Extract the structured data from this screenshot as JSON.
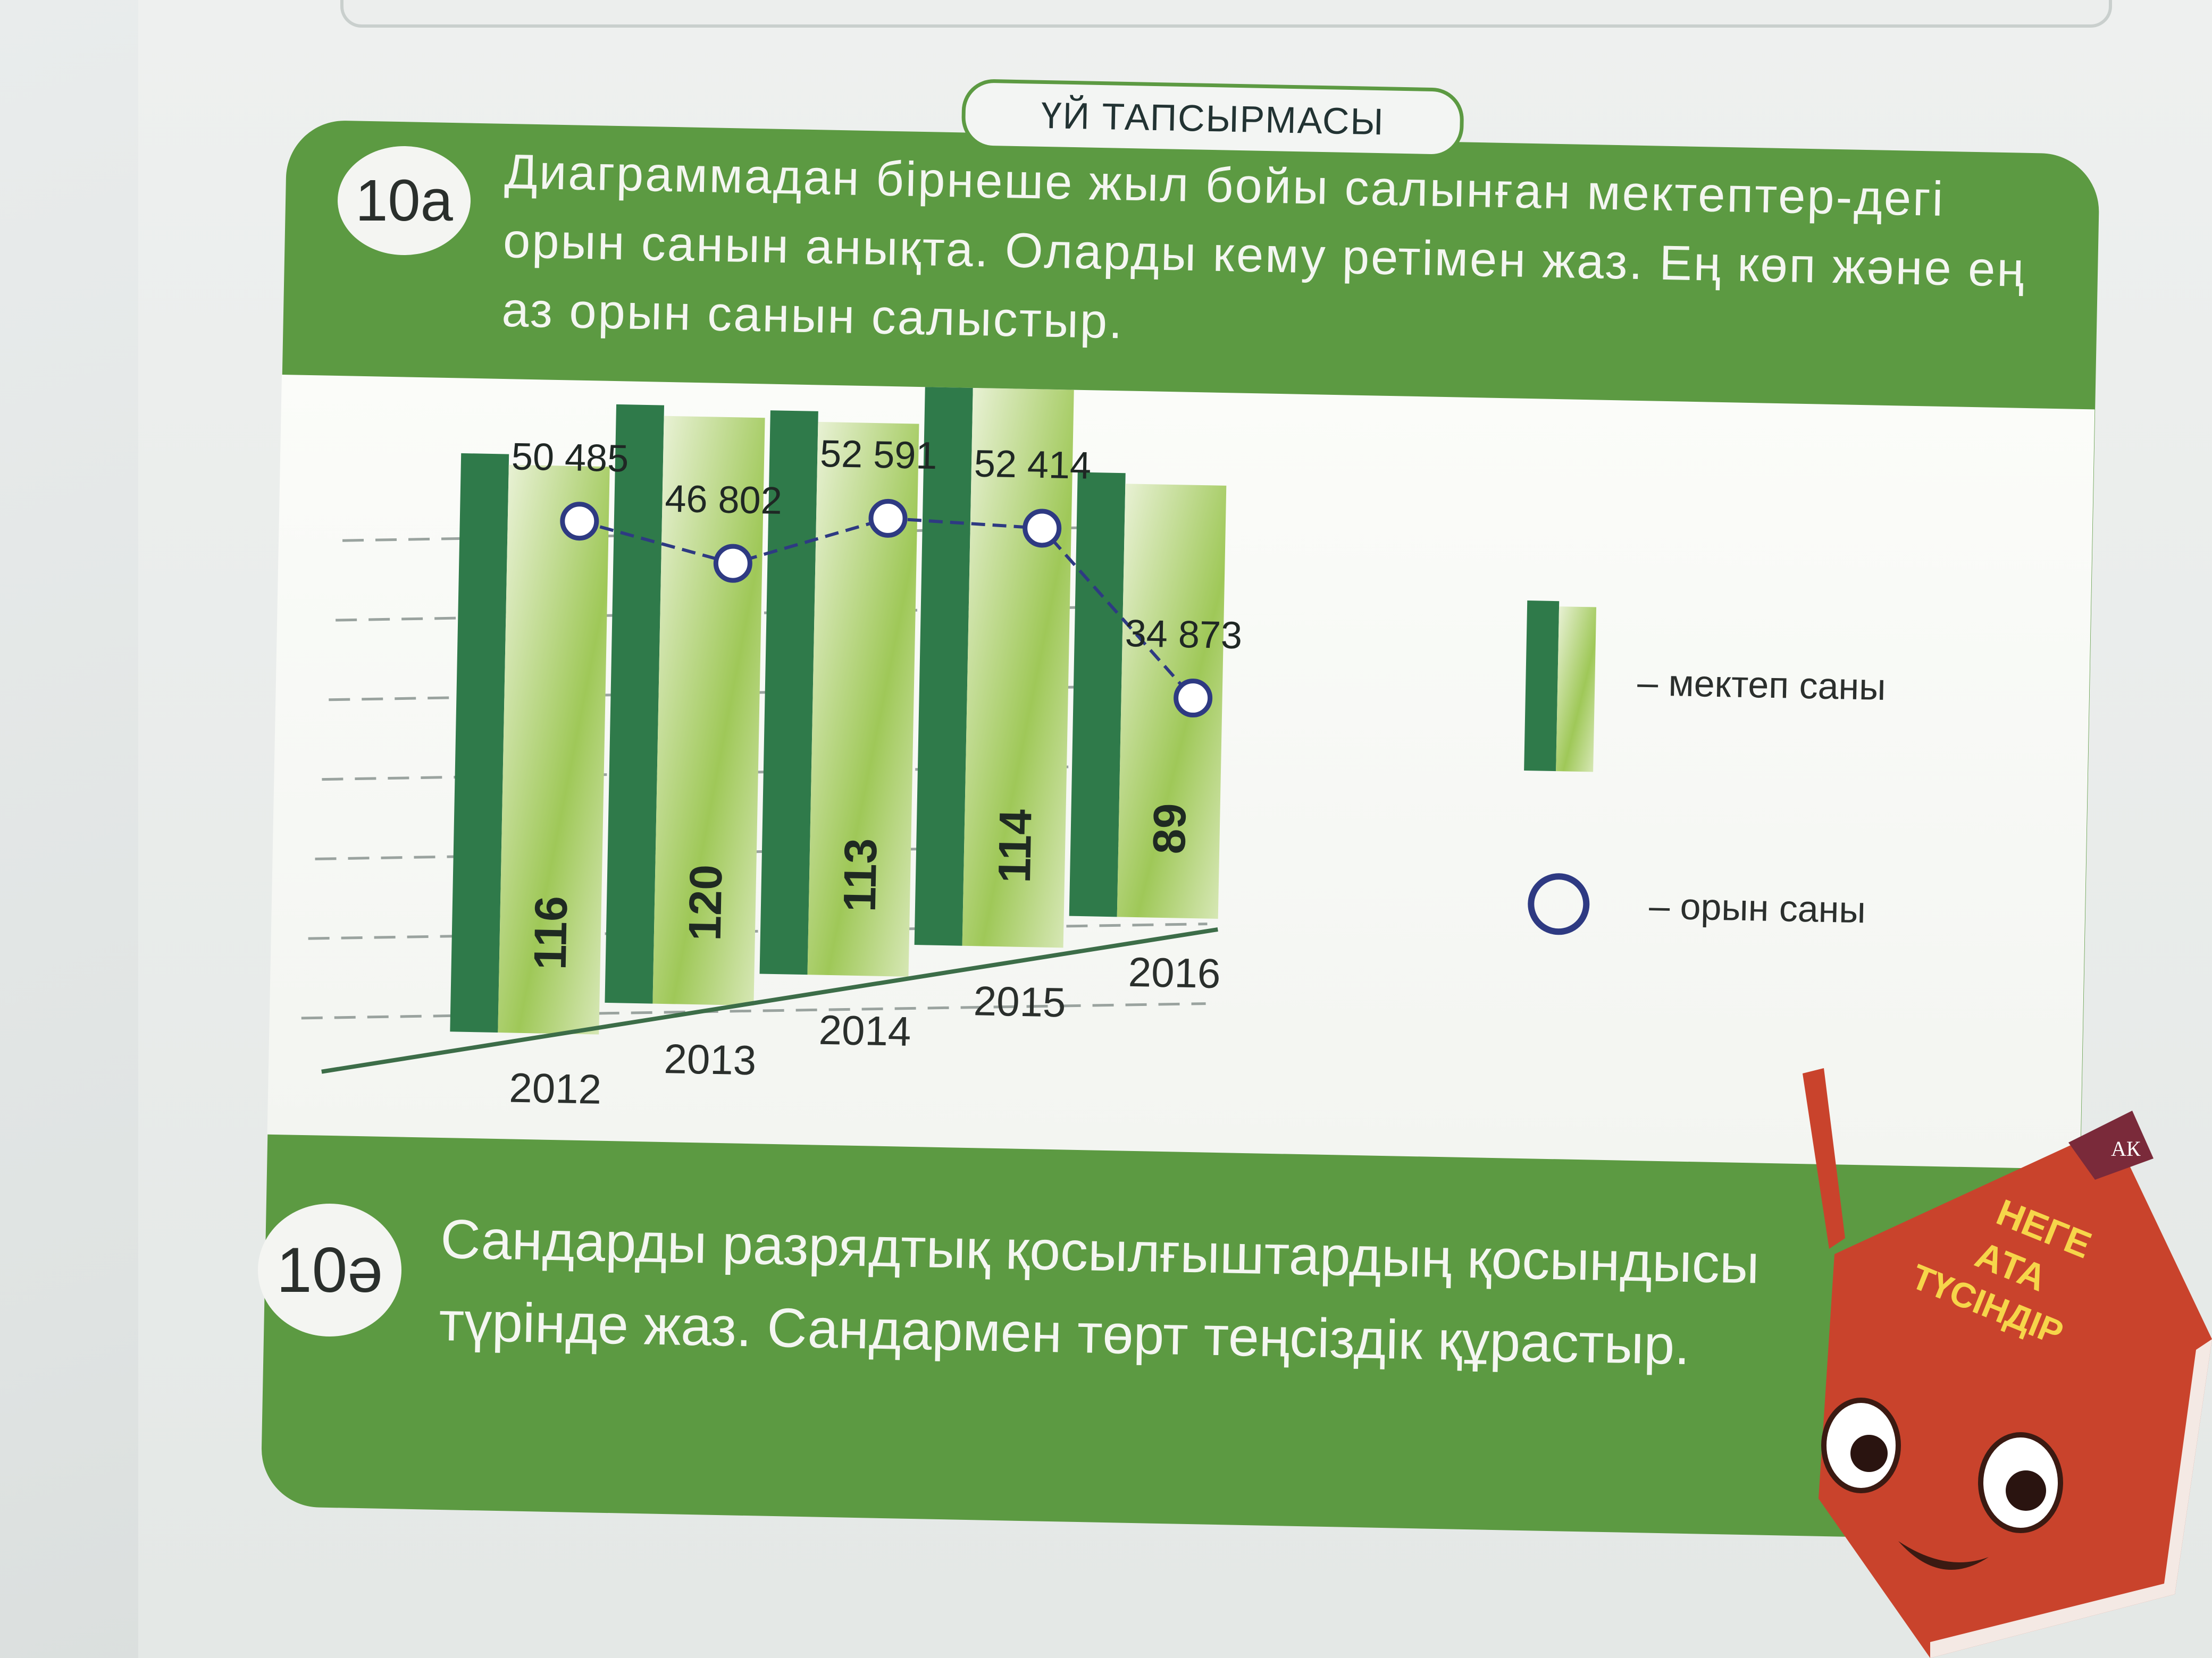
{
  "header": {
    "tab_label": "ҮЙ ТАПСЫРМАСЫ"
  },
  "task_a": {
    "badge": "10а",
    "text": "Диаграммадан бірнеше жыл бойы салынған мектептер-дегі орын санын анықта. Оларды кему ретімен жаз. Ең көп және ең аз орын санын салыстыр."
  },
  "task_b": {
    "badge": "10ә",
    "text": "Сандарды разрядтық қосылғыштардың қосындысы түрінде жаз. Сандармен төрт теңсіздік құрастыр."
  },
  "legend": {
    "bars_label": "– мектеп саны",
    "circles_label": "– орын саны"
  },
  "mascot": {
    "lines": [
      "НЕГЕ",
      "АТА",
      "ТҮСІНДІР"
    ],
    "logo": "АК"
  },
  "colors": {
    "panel_green": "#5c9a42",
    "bar_dark": "#2f7a4a",
    "bar_light": "#9fc858",
    "line_marker": "#2e3a82",
    "mascot_red": "#c9432c"
  },
  "chart_data": {
    "type": "bar",
    "categories": [
      "2012",
      "2013",
      "2014",
      "2015",
      "2016"
    ],
    "series": [
      {
        "name": "мектеп саны",
        "kind": "bar",
        "values": [
          116,
          120,
          113,
          114,
          89
        ]
      },
      {
        "name": "орын саны",
        "kind": "line",
        "values": [
          50485,
          46802,
          52591,
          52414,
          34873
        ]
      }
    ],
    "value_labels_line": [
      "50 485",
      "46 802",
      "52 591",
      "52 414",
      "34 873"
    ],
    "grid": "dashed",
    "legend_position": "right"
  }
}
